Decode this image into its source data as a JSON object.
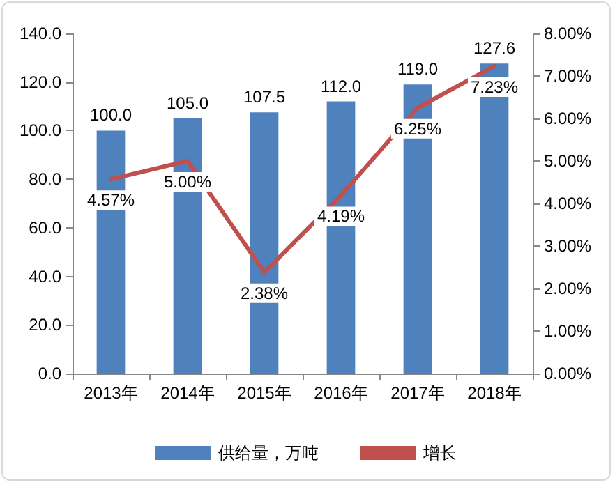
{
  "chart_data": {
    "type": "bar",
    "categories": [
      "2013年",
      "2014年",
      "2015年",
      "2016年",
      "2017年",
      "2018年"
    ],
    "series": [
      {
        "name": "供给量，万吨",
        "color": "#4f81bd",
        "values": [
          100.0,
          105.0,
          107.5,
          112.0,
          119.0,
          127.6
        ],
        "value_labels": [
          "100.0",
          "105.0",
          "107.5",
          "112.0",
          "119.0",
          "127.6"
        ]
      },
      {
        "name": "增长",
        "type": "line",
        "axis": "y2",
        "color": "#c0504d",
        "values": [
          4.57,
          5.0,
          2.38,
          4.19,
          6.25,
          7.23
        ],
        "value_labels": [
          "4.57%",
          "5.00%",
          "2.38%",
          "4.19%",
          "6.25%",
          "7.23%"
        ]
      }
    ],
    "ylim": [
      0,
      140
    ],
    "yticks": [
      {
        "value": 0,
        "label": "0.0"
      },
      {
        "value": 20,
        "label": "20.0"
      },
      {
        "value": 40,
        "label": "40.0"
      },
      {
        "value": 60,
        "label": "60.0"
      },
      {
        "value": 80,
        "label": "80.0"
      },
      {
        "value": 100,
        "label": "100.0"
      },
      {
        "value": 120,
        "label": "120.0"
      },
      {
        "value": 140,
        "label": "140.0"
      }
    ],
    "y2lim": [
      0,
      8
    ],
    "y2ticks": [
      {
        "value": 0,
        "label": "0.00%"
      },
      {
        "value": 1,
        "label": "1.00%"
      },
      {
        "value": 2,
        "label": "2.00%"
      },
      {
        "value": 3,
        "label": "3.00%"
      },
      {
        "value": 4,
        "label": "4.00%"
      },
      {
        "value": 5,
        "label": "5.00%"
      },
      {
        "value": 6,
        "label": "6.00%"
      },
      {
        "value": 7,
        "label": "7.00%"
      },
      {
        "value": 8,
        "label": "8.00%"
      }
    ],
    "grid": false,
    "legend": "bottom",
    "marker": "none",
    "line_style": "solid"
  }
}
